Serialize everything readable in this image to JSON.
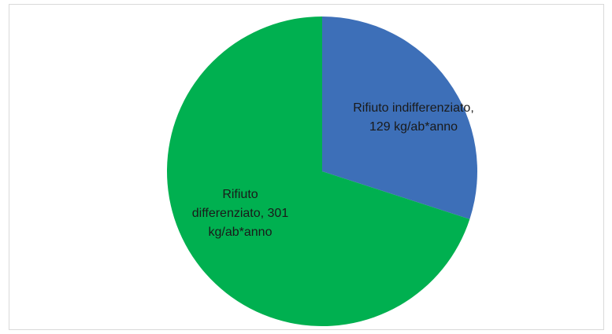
{
  "chart_data": {
    "type": "pie",
    "categories": [
      "Rifiuto indifferenziato",
      "Rifiuto differenziato"
    ],
    "values": [
      129,
      301
    ],
    "value_labels": [
      "Rifiuto indifferenziato, 129 kg/ab*anno",
      "Rifiuto differenziato, 301 kg/ab*anno"
    ],
    "colors": [
      "#3d6fb8",
      "#00b050"
    ]
  }
}
